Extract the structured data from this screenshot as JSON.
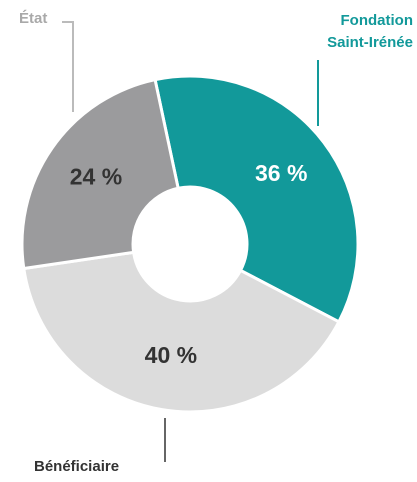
{
  "chart_data": {
    "type": "donut",
    "categories": [
      "Fondation Saint-Irénée",
      "Bénéficiaire",
      "État"
    ],
    "values": [
      36,
      40,
      24
    ],
    "value_labels": [
      "36 %",
      "40 %",
      "24 %"
    ],
    "colors": [
      "#12999a",
      "#dcdcdc",
      "#9b9b9d"
    ]
  }
}
